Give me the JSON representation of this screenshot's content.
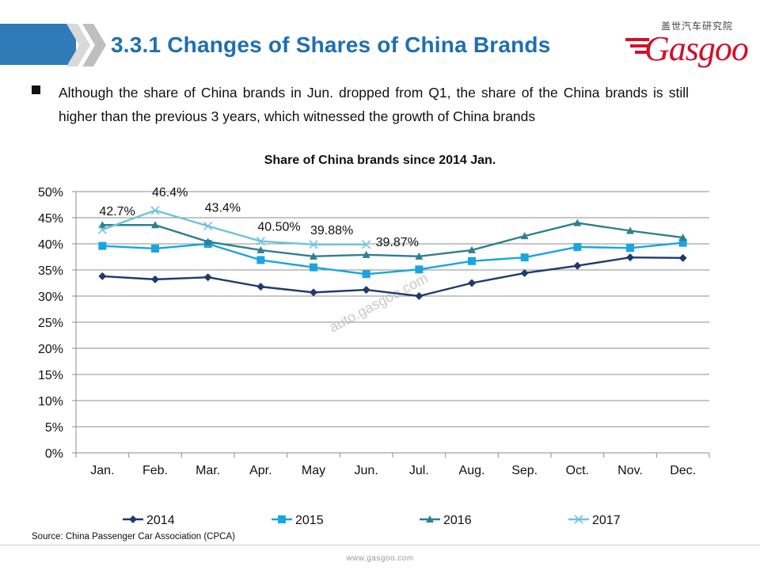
{
  "header": {
    "title": "3.3.1 Changes of Shares of China Brands",
    "logo_cn": "盖世汽车研究院",
    "logo_word": "Gasgoo"
  },
  "bullet": {
    "text": "Although the share of China brands in Jun. dropped from Q1, the share of the China brands is still higher than the previous 3 years, which witnessed the growth of China brands"
  },
  "source": "Source: China Passenger Car Association (CPCA)",
  "footer_url": "www.gasgoo.com",
  "watermark": "auto.gasgoo.com",
  "chart_data": {
    "type": "line",
    "title": "Share of China brands since 2014 Jan.",
    "xlabel": "",
    "ylabel": "",
    "categories": [
      "Jan.",
      "Feb.",
      "Mar.",
      "Apr.",
      "May",
      "Jun.",
      "Jul.",
      "Aug.",
      "Sep.",
      "Oct.",
      "Nov.",
      "Dec."
    ],
    "yticks": [
      "0%",
      "5%",
      "10%",
      "15%",
      "20%",
      "25%",
      "30%",
      "35%",
      "40%",
      "45%",
      "50%"
    ],
    "ylim": [
      0,
      50
    ],
    "grid": true,
    "legend_position": "bottom",
    "series": [
      {
        "name": "2014",
        "color": "#1f3a6d",
        "marker": "diamond",
        "values": [
          33.8,
          33.2,
          33.6,
          31.8,
          30.7,
          31.2,
          30.0,
          32.5,
          34.4,
          35.8,
          37.4,
          37.3
        ]
      },
      {
        "name": "2015",
        "color": "#19a5e0",
        "marker": "square",
        "values": [
          39.6,
          39.1,
          40.0,
          36.9,
          35.5,
          34.2,
          35.1,
          36.7,
          37.4,
          39.4,
          39.2,
          40.2
        ]
      },
      {
        "name": "2016",
        "color": "#2f7f8f",
        "marker": "triangle",
        "values": [
          43.6,
          43.6,
          40.4,
          38.8,
          37.6,
          37.9,
          37.6,
          38.8,
          41.5,
          44.0,
          42.5,
          41.2
        ]
      },
      {
        "name": "2017",
        "color": "#6fc3df",
        "marker": "x",
        "values": [
          42.7,
          46.4,
          43.4,
          40.5,
          39.88,
          39.87,
          null,
          null,
          null,
          null,
          null,
          null
        ],
        "labels": [
          "42.7%",
          "46.4%",
          "43.4%",
          "40.50%",
          "39.88%",
          "39.87%"
        ]
      }
    ]
  }
}
